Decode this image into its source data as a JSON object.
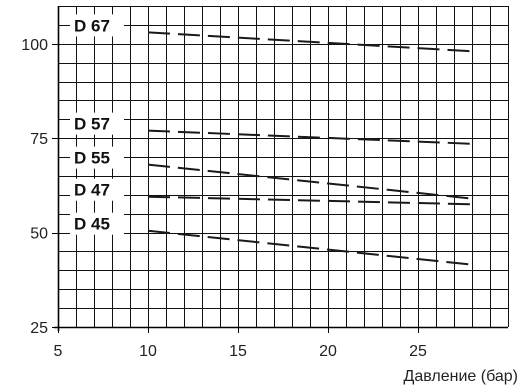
{
  "chart_data": {
    "type": "line",
    "title": "",
    "xlabel": "Давление (бар)",
    "ylabel": "",
    "xlim": [
      5,
      30
    ],
    "ylim": [
      25,
      110
    ],
    "grid": true,
    "x_ticks": [
      5,
      10,
      15,
      20,
      25
    ],
    "y_ticks": [
      25,
      50,
      75,
      100
    ],
    "series": [
      {
        "name": "D 67",
        "x": [
          10,
          28
        ],
        "values": [
          103,
          98
        ]
      },
      {
        "name": "D 57",
        "x": [
          10,
          28
        ],
        "values": [
          77,
          73.5
        ]
      },
      {
        "name": "D 55",
        "x": [
          10,
          28
        ],
        "values": [
          68,
          59
        ]
      },
      {
        "name": "D 47",
        "x": [
          10,
          28
        ],
        "values": [
          59.5,
          57.5
        ]
      },
      {
        "name": "D 45",
        "x": [
          10,
          28
        ],
        "values": [
          50.5,
          41.5
        ]
      }
    ],
    "line_color": "#1a1a1a",
    "grid_color": "#111111"
  }
}
